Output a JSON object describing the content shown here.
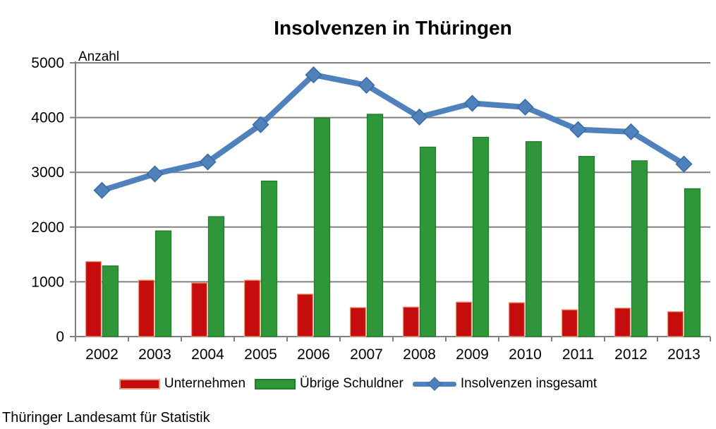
{
  "chart_data": {
    "type": "bar+line",
    "title": "Insolvenzen in Thüringen",
    "ylabel": "Anzahl",
    "xlabel": "",
    "ylim": [
      0,
      5000
    ],
    "yticks": [
      0,
      1000,
      2000,
      3000,
      4000,
      5000
    ],
    "grid": true,
    "legend_position": "bottom",
    "categories": [
      "2002",
      "2003",
      "2004",
      "2005",
      "2006",
      "2007",
      "2008",
      "2009",
      "2010",
      "2011",
      "2012",
      "2013"
    ],
    "series": [
      {
        "name": "Unternehmen",
        "type": "bar",
        "color": "#c60d0d",
        "border": "#e8a07d",
        "values": [
          1370,
          1030,
          980,
          1030,
          775,
          530,
          540,
          630,
          620,
          490,
          520,
          455
        ]
      },
      {
        "name": "Übrige Schuldner",
        "type": "bar",
        "color": "#2f9639",
        "border": "#237c2c",
        "values": [
          1290,
          1930,
          2190,
          2840,
          3990,
          4060,
          3460,
          3640,
          3560,
          3290,
          3210,
          2700
        ]
      },
      {
        "name": "Insolvenzen insgesamt",
        "type": "line",
        "color": "#4f81bd",
        "border": "#3a6aa3",
        "values": [
          2670,
          2970,
          3190,
          3870,
          4780,
          4590,
          4010,
          4260,
          4190,
          3780,
          3740,
          3150
        ]
      }
    ],
    "grid_color": "#808080"
  },
  "footer": {
    "source": "Thüringer Landesamt für Statistik"
  }
}
